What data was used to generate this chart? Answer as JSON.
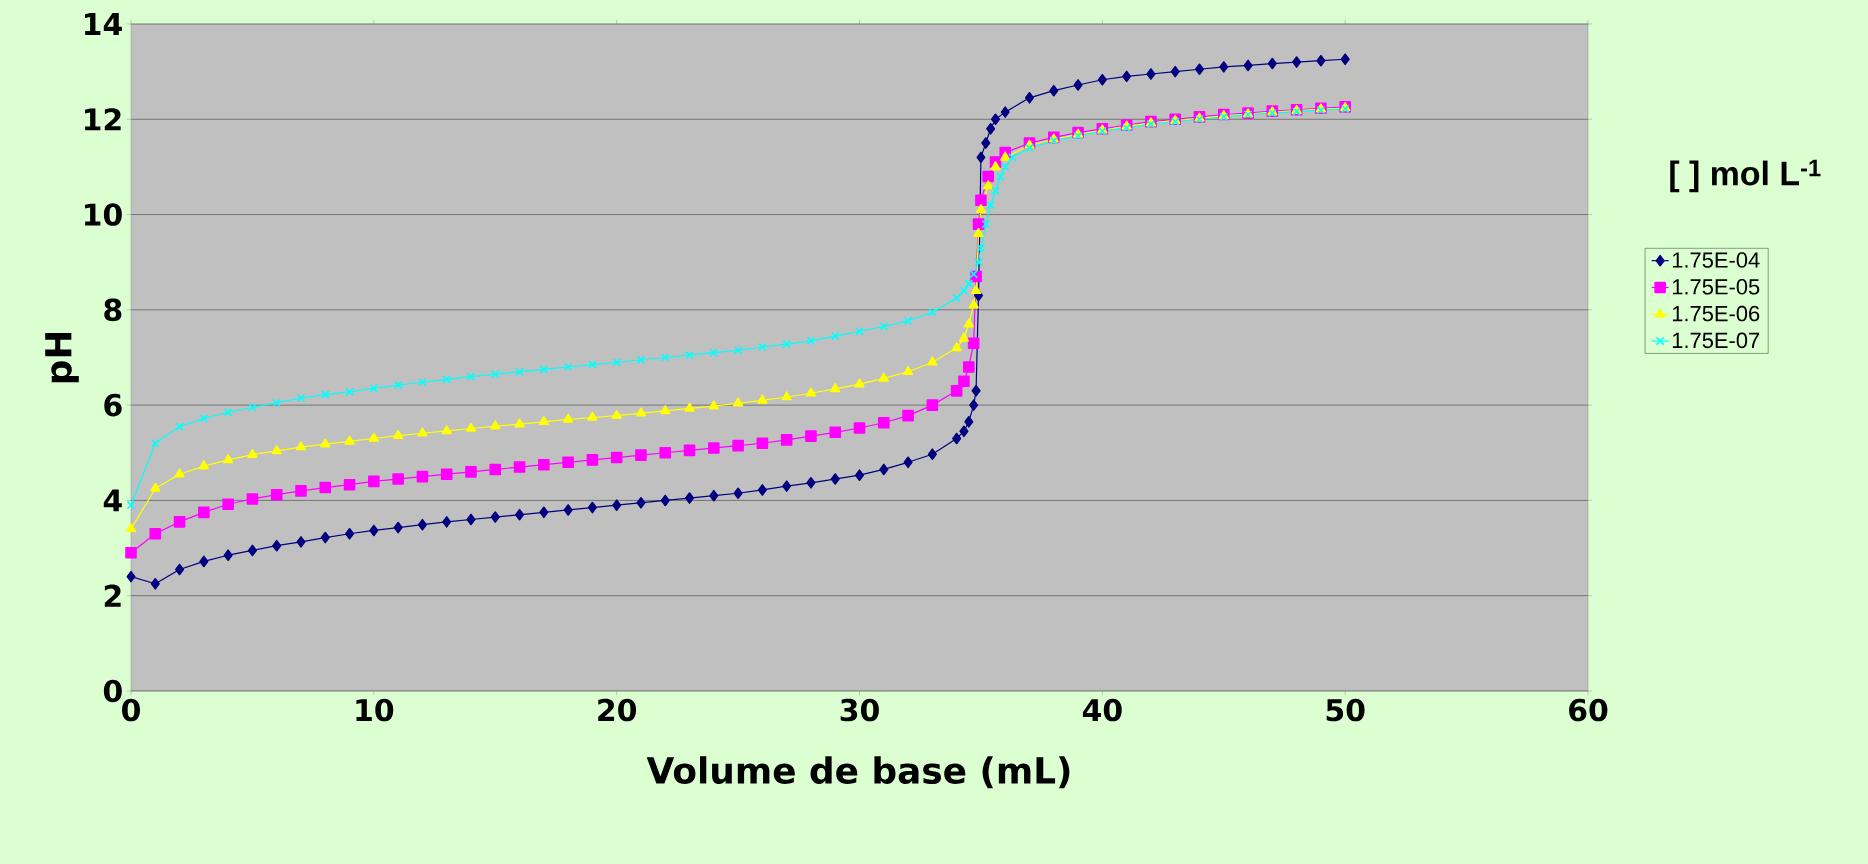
{
  "chart_data": {
    "type": "line",
    "xlabel": "Volume de base  (mL)",
    "ylabel": "pH",
    "legend_title": "[ ] mol L$^{-1}$",
    "xlim": [
      0,
      60
    ],
    "xticks": [
      0,
      10,
      20,
      30,
      40,
      50,
      60
    ],
    "ylim": [
      0,
      14
    ],
    "yticks": [
      0,
      2,
      4,
      6,
      8,
      10,
      12,
      14
    ],
    "grid": "y",
    "legend": "right",
    "line_style": "solid",
    "series": [
      {
        "name": "1.75E-04",
        "color": "#000080",
        "marker": "diamond",
        "x": [
          0,
          1,
          2,
          3,
          4,
          5,
          6,
          7,
          8,
          9,
          10,
          11,
          12,
          13,
          14,
          15,
          16,
          17,
          18,
          19,
          20,
          21,
          22,
          23,
          24,
          25,
          26,
          27,
          28,
          29,
          30,
          31,
          32,
          33,
          34,
          34.3,
          34.5,
          34.7,
          34.8,
          34.9,
          35,
          35.2,
          35.4,
          35.6,
          36,
          37,
          38,
          39,
          40,
          41,
          42,
          43,
          44,
          45,
          46,
          47,
          48,
          49,
          50
        ],
        "values": [
          2.4,
          2.25,
          2.55,
          2.72,
          2.85,
          2.95,
          3.05,
          3.13,
          3.22,
          3.3,
          3.37,
          3.43,
          3.49,
          3.55,
          3.6,
          3.65,
          3.7,
          3.75,
          3.8,
          3.85,
          3.9,
          3.95,
          4.0,
          4.05,
          4.1,
          4.15,
          4.22,
          4.3,
          4.37,
          4.45,
          4.53,
          4.65,
          4.8,
          4.97,
          5.3,
          5.45,
          5.65,
          6.0,
          6.3,
          8.3,
          11.2,
          11.5,
          11.8,
          12.0,
          12.15,
          12.45,
          12.6,
          12.72,
          12.83,
          12.9,
          12.95,
          13.0,
          13.05,
          13.1,
          13.13,
          13.17,
          13.2,
          13.23,
          13.26
        ]
      },
      {
        "name": "1.75E-05",
        "color": "#ff00ff",
        "marker": "square",
        "x": [
          0,
          1,
          2,
          3,
          4,
          5,
          6,
          7,
          8,
          9,
          10,
          11,
          12,
          13,
          14,
          15,
          16,
          17,
          18,
          19,
          20,
          21,
          22,
          23,
          24,
          25,
          26,
          27,
          28,
          29,
          30,
          31,
          32,
          33,
          34,
          34.3,
          34.5,
          34.7,
          34.8,
          34.9,
          35,
          35.3,
          35.6,
          36,
          37,
          38,
          39,
          40,
          41,
          42,
          43,
          44,
          45,
          46,
          47,
          48,
          49,
          50
        ],
        "values": [
          2.9,
          3.3,
          3.55,
          3.75,
          3.92,
          4.03,
          4.12,
          4.2,
          4.27,
          4.33,
          4.4,
          4.45,
          4.5,
          4.55,
          4.6,
          4.65,
          4.7,
          4.75,
          4.8,
          4.85,
          4.9,
          4.95,
          5.0,
          5.05,
          5.1,
          5.15,
          5.2,
          5.27,
          5.35,
          5.43,
          5.52,
          5.63,
          5.78,
          6.0,
          6.3,
          6.5,
          6.8,
          7.3,
          8.7,
          9.8,
          10.3,
          10.8,
          11.1,
          11.3,
          11.5,
          11.62,
          11.72,
          11.8,
          11.88,
          11.95,
          12.0,
          12.05,
          12.1,
          12.13,
          12.17,
          12.2,
          12.23,
          12.26
        ]
      },
      {
        "name": "1.75E-06",
        "color": "#ffff00",
        "marker": "triangle",
        "x": [
          0,
          1,
          2,
          3,
          4,
          5,
          6,
          7,
          8,
          9,
          10,
          11,
          12,
          13,
          14,
          15,
          16,
          17,
          18,
          19,
          20,
          21,
          22,
          23,
          24,
          25,
          26,
          27,
          28,
          29,
          30,
          31,
          32,
          33,
          34,
          34.3,
          34.5,
          34.7,
          34.8,
          34.9,
          35,
          35.3,
          35.6,
          36,
          37,
          38,
          39,
          40,
          41,
          42,
          43,
          44,
          45,
          46,
          47,
          48,
          49,
          50
        ],
        "values": [
          3.4,
          4.25,
          4.55,
          4.72,
          4.85,
          4.96,
          5.04,
          5.12,
          5.18,
          5.24,
          5.3,
          5.36,
          5.41,
          5.46,
          5.51,
          5.56,
          5.6,
          5.65,
          5.7,
          5.74,
          5.78,
          5.83,
          5.88,
          5.93,
          5.98,
          6.04,
          6.1,
          6.17,
          6.25,
          6.34,
          6.44,
          6.56,
          6.7,
          6.9,
          7.2,
          7.4,
          7.7,
          8.1,
          8.4,
          9.6,
          10.1,
          10.6,
          11.0,
          11.2,
          11.45,
          11.58,
          11.68,
          11.77,
          11.85,
          11.92,
          11.97,
          12.02,
          12.07,
          12.11,
          12.15,
          12.18,
          12.21,
          12.24
        ]
      },
      {
        "name": "1.75E-07",
        "color": "#00ffff",
        "marker": "cross",
        "x": [
          0,
          1,
          2,
          3,
          4,
          5,
          6,
          7,
          8,
          9,
          10,
          11,
          12,
          13,
          14,
          15,
          16,
          17,
          18,
          19,
          20,
          21,
          22,
          23,
          24,
          25,
          26,
          27,
          28,
          29,
          30,
          31,
          32,
          33,
          34,
          34.3,
          34.5,
          34.7,
          34.9,
          35,
          35.2,
          35.4,
          35.6,
          35.8,
          36,
          36.3,
          37,
          38,
          39,
          40,
          41,
          42,
          43,
          44,
          45,
          46,
          47,
          48,
          49,
          50
        ],
        "values": [
          3.9,
          5.2,
          5.55,
          5.72,
          5.85,
          5.95,
          6.05,
          6.15,
          6.22,
          6.28,
          6.35,
          6.42,
          6.48,
          6.54,
          6.6,
          6.65,
          6.7,
          6.75,
          6.8,
          6.85,
          6.9,
          6.95,
          7.0,
          7.05,
          7.1,
          7.15,
          7.22,
          7.28,
          7.35,
          7.45,
          7.55,
          7.65,
          7.77,
          7.95,
          8.25,
          8.4,
          8.55,
          8.75,
          9.0,
          9.3,
          9.8,
          10.2,
          10.5,
          10.8,
          11.0,
          11.2,
          11.4,
          11.55,
          11.65,
          11.75,
          11.82,
          11.9,
          11.95,
          12.0,
          12.05,
          12.1,
          12.13,
          12.16,
          12.19,
          12.22
        ]
      }
    ]
  }
}
